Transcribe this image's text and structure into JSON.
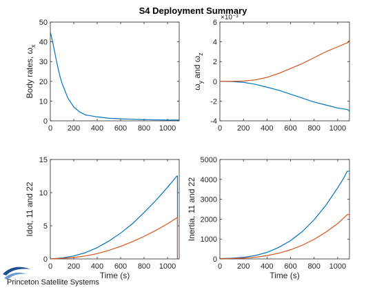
{
  "window": {
    "suptitle": "S4 Deployment Summary",
    "logo_text": "Princeton Satellite Systems"
  },
  "colors": {
    "series1": "#0072BD",
    "series2": "#D95319",
    "axes": "#262626"
  },
  "chart_data": [
    {
      "type": "line",
      "title": "",
      "xlabel": "",
      "ylabel": "Body rates, ω_x",
      "ylabel_parts": {
        "main": "Body rates, ω",
        "sub": "x"
      },
      "xlim": [
        0,
        1100
      ],
      "ylim": [
        0,
        50
      ],
      "xticks": [
        0,
        200,
        400,
        600,
        800,
        1000
      ],
      "yticks": [
        0,
        10,
        20,
        30,
        40,
        50
      ],
      "grid": false,
      "series": [
        {
          "x": [
            0,
            20,
            50,
            80,
            100,
            150,
            200,
            250,
            300,
            400,
            500,
            600,
            700,
            800,
            900,
            1000,
            1100
          ],
          "y": [
            45,
            40,
            31,
            23,
            19,
            11.5,
            7,
            4.5,
            3,
            2,
            1.3,
            1,
            0.8,
            0.6,
            0.5,
            0.4,
            0.4
          ]
        }
      ]
    },
    {
      "type": "line",
      "title": "",
      "xlabel": "",
      "ylabel": "ω_y and ω_z",
      "ylabel_parts": {
        "w1": "ω",
        "sub1": "y",
        "mid": " and ω",
        "sub2": "z"
      },
      "exponent_label": "×10⁻³",
      "xlim": [
        0,
        1100
      ],
      "ylim": [
        -4,
        6
      ],
      "xticks": [
        0,
        200,
        400,
        600,
        800,
        1000
      ],
      "yticks": [
        -4,
        -2,
        0,
        2,
        4,
        6
      ],
      "grid": false,
      "series": [
        {
          "x": [
            0,
            100,
            200,
            300,
            400,
            500,
            600,
            700,
            800,
            900,
            1000,
            1080,
            1090,
            1100
          ],
          "y": [
            0,
            -0.02,
            -0.1,
            -0.3,
            -0.6,
            -0.9,
            -1.3,
            -1.7,
            -2.1,
            -2.4,
            -2.7,
            -2.85,
            -2.9,
            -3.05
          ]
        },
        {
          "x": [
            0,
            100,
            200,
            300,
            400,
            500,
            600,
            700,
            800,
            900,
            1000,
            1080,
            1090,
            1100
          ],
          "y": [
            0,
            0,
            0.03,
            0.15,
            0.4,
            0.8,
            1.3,
            1.8,
            2.4,
            3.0,
            3.5,
            3.9,
            3.95,
            4.2
          ]
        }
      ]
    },
    {
      "type": "line",
      "title": "",
      "xlabel": "Time (s)",
      "ylabel": "Idot, 11 and 22",
      "xlim": [
        0,
        1100
      ],
      "ylim": [
        0,
        15
      ],
      "xticks": [
        0,
        200,
        400,
        600,
        800,
        1000
      ],
      "yticks": [
        0,
        5,
        10,
        15
      ],
      "grid": false,
      "series": [
        {
          "x": [
            0,
            100,
            200,
            300,
            400,
            500,
            600,
            700,
            800,
            900,
            1000,
            1080,
            1085,
            1085
          ],
          "y": [
            0,
            0.15,
            0.45,
            0.95,
            1.7,
            2.7,
            3.9,
            5.3,
            7.0,
            8.8,
            10.8,
            12.5,
            12.5,
            0
          ]
        },
        {
          "x": [
            0,
            100,
            200,
            300,
            400,
            500,
            600,
            700,
            800,
            900,
            1000,
            1080,
            1085,
            1085
          ],
          "y": [
            0,
            0.08,
            0.22,
            0.45,
            0.8,
            1.3,
            1.9,
            2.6,
            3.4,
            4.3,
            5.3,
            6.2,
            6.2,
            0
          ]
        }
      ]
    },
    {
      "type": "line",
      "title": "",
      "xlabel": "Time (s)",
      "ylabel": "Inertia, 11 and 22",
      "xlim": [
        0,
        1100
      ],
      "ylim": [
        0,
        5000
      ],
      "xticks": [
        0,
        200,
        400,
        600,
        800,
        1000
      ],
      "yticks": [
        0,
        1000,
        2000,
        3000,
        4000,
        5000
      ],
      "grid": false,
      "series": [
        {
          "x": [
            0,
            100,
            200,
            300,
            400,
            500,
            600,
            700,
            800,
            900,
            1000,
            1050,
            1080,
            1100
          ],
          "y": [
            20,
            35,
            80,
            170,
            330,
            580,
            920,
            1380,
            1970,
            2700,
            3580,
            4050,
            4400,
            4420
          ]
        },
        {
          "x": [
            0,
            100,
            200,
            300,
            400,
            500,
            600,
            700,
            800,
            900,
            1000,
            1050,
            1080,
            1100
          ],
          "y": [
            10,
            18,
            40,
            85,
            165,
            290,
            460,
            690,
            985,
            1350,
            1780,
            2050,
            2220,
            2240
          ]
        }
      ]
    }
  ]
}
